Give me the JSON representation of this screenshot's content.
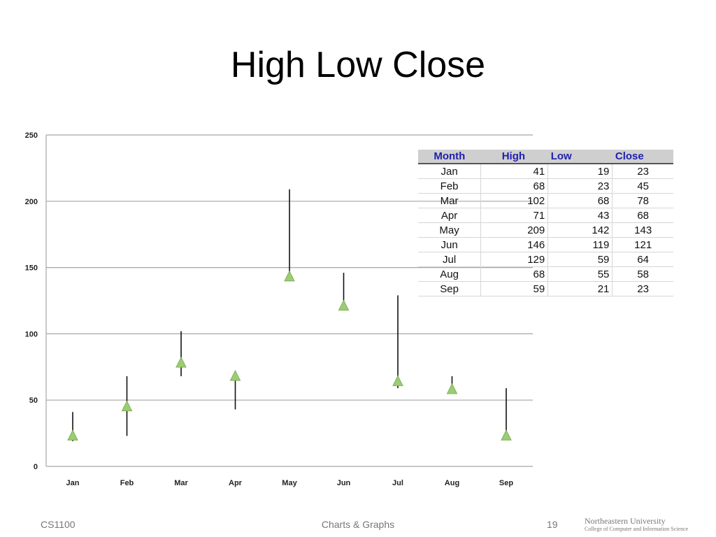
{
  "slide": {
    "title": "High Low Close",
    "footer_left": "CS1100",
    "footer_center": "Charts & Graphs",
    "page_number": "19",
    "logo_line1": "Northeastern University",
    "logo_line2": "College of Computer and Information Science"
  },
  "table": {
    "headers": [
      "Month",
      "High",
      "Low",
      "Close"
    ],
    "rows": [
      [
        "Jan",
        "41",
        "19",
        "23"
      ],
      [
        "Feb",
        "68",
        "23",
        "45"
      ],
      [
        "Mar",
        "102",
        "68",
        "78"
      ],
      [
        "Apr",
        "71",
        "43",
        "68"
      ],
      [
        "May",
        "209",
        "142",
        "143"
      ],
      [
        "Jun",
        "146",
        "119",
        "121"
      ],
      [
        "Jul",
        "129",
        "59",
        "64"
      ],
      [
        "Aug",
        "68",
        "55",
        "58"
      ],
      [
        "Sep",
        "59",
        "21",
        "23"
      ]
    ]
  },
  "chart_data": {
    "type": "high-low-close",
    "categories": [
      "Jan",
      "Feb",
      "Mar",
      "Apr",
      "May",
      "Jun",
      "Jul",
      "Aug",
      "Sep"
    ],
    "series": [
      {
        "name": "High",
        "values": [
          41,
          68,
          102,
          71,
          209,
          146,
          129,
          68,
          59
        ]
      },
      {
        "name": "Low",
        "values": [
          19,
          23,
          68,
          43,
          142,
          119,
          59,
          55,
          21
        ]
      },
      {
        "name": "Close",
        "values": [
          23,
          45,
          78,
          68,
          143,
          121,
          64,
          58,
          23
        ]
      }
    ],
    "ylim": [
      0,
      250
    ],
    "yticks": [
      0,
      50,
      100,
      150,
      200,
      250
    ],
    "grid": true,
    "marker_color": "#9ccc74",
    "line_color": "#111111",
    "grid_color": "#a6a6a6"
  }
}
